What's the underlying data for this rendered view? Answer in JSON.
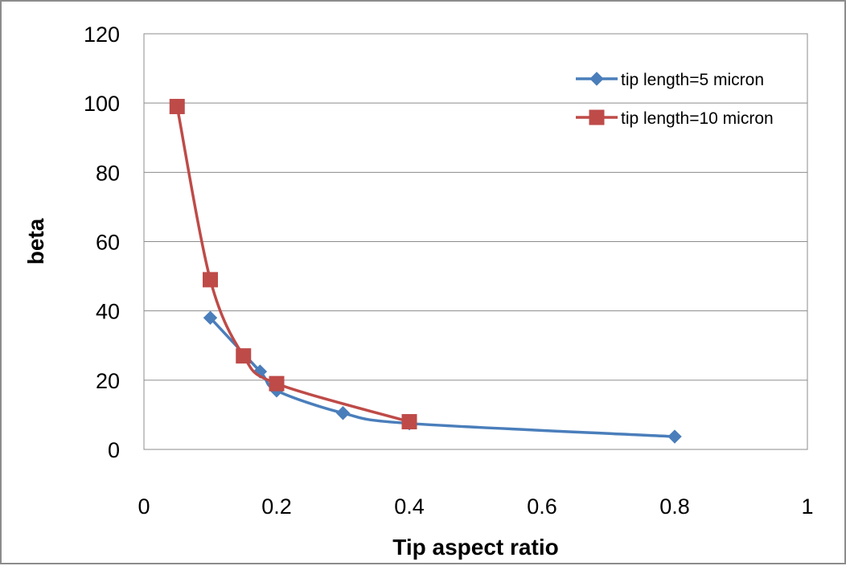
{
  "chart_data": {
    "type": "scatter",
    "title": "",
    "xlabel": "Tip aspect ratio",
    "ylabel": "beta",
    "xlim": [
      0,
      1
    ],
    "ylim": [
      0,
      120
    ],
    "xticks": [
      0,
      0.2,
      0.4,
      0.6,
      0.8,
      1
    ],
    "xtick_labels": [
      "0",
      "0.2",
      "0.4",
      "0.6",
      "0.8",
      "1"
    ],
    "yticks": [
      0,
      20,
      40,
      60,
      80,
      100,
      120
    ],
    "ytick_labels": [
      "0",
      "20",
      "40",
      "60",
      "80",
      "100",
      "120"
    ],
    "grid": "horizontal major gridlines",
    "legend_position": "top-right, inside plot",
    "series": [
      {
        "name": "tip length=5 micron",
        "color": "#4a7ebb",
        "marker": "diamond",
        "x": [
          0.1,
          0.175,
          0.2,
          0.3,
          0.4,
          0.8
        ],
        "y": [
          38,
          22.5,
          17,
          10.5,
          7.5,
          3.7
        ]
      },
      {
        "name": "tip length=10 micron",
        "color": "#be4b48",
        "marker": "square",
        "x": [
          0.05,
          0.1,
          0.15,
          0.2,
          0.4
        ],
        "y": [
          99,
          49,
          27,
          19,
          8
        ]
      }
    ]
  }
}
